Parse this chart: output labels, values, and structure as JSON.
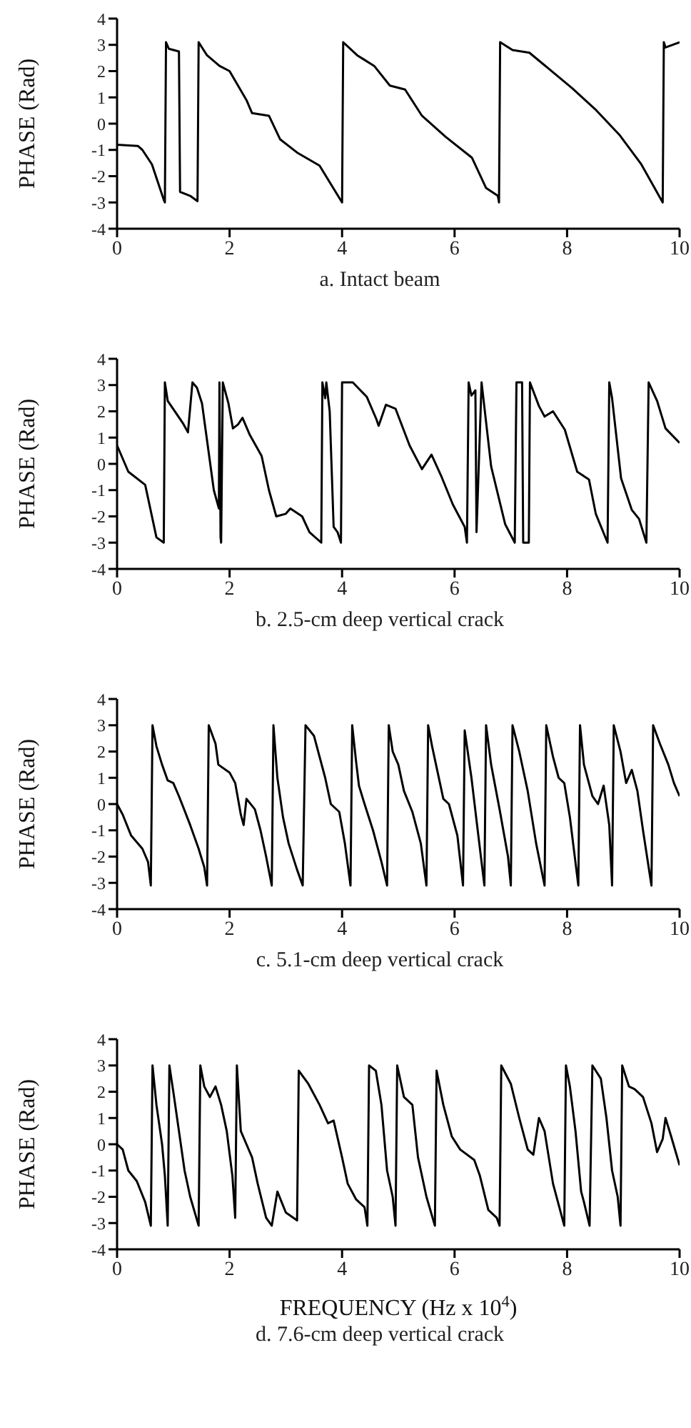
{
  "chart_data": [
    {
      "type": "line",
      "title": "a.  Intact beam",
      "ylabel": "PHASE (Rad)",
      "color": "#000000",
      "xlim": [
        0,
        10
      ],
      "xticks": [
        0,
        2,
        4,
        6,
        8,
        10
      ],
      "ylim": [
        -4,
        4
      ],
      "yticks": [
        -4,
        -3,
        -2,
        -1,
        0,
        1,
        2,
        3,
        4
      ],
      "x": [
        0,
        0.37,
        0.45,
        0.62,
        0.83,
        0.85,
        0.87,
        0.92,
        1.1,
        1.12,
        1.3,
        1.43,
        1.45,
        1.6,
        1.82,
        2.0,
        2.3,
        2.4,
        2.7,
        2.9,
        3.2,
        3.6,
        4.0,
        4.02,
        4.27,
        4.57,
        4.85,
        5.12,
        5.42,
        5.84,
        6.31,
        6.56,
        6.77,
        6.79,
        6.81,
        7.03,
        7.33,
        7.67,
        8.09,
        8.5,
        8.94,
        9.32,
        9.7,
        9.72,
        9.75,
        10
      ],
      "values": [
        -0.8,
        -0.85,
        -1.0,
        -1.55,
        -2.9,
        -3.0,
        3.1,
        2.85,
        2.75,
        -2.6,
        -2.75,
        -2.95,
        3.1,
        2.6,
        2.2,
        2.0,
        0.9,
        0.4,
        0.3,
        -0.6,
        -1.1,
        -1.6,
        -3.0,
        3.1,
        2.6,
        2.2,
        1.45,
        1.3,
        0.3,
        -0.5,
        -1.3,
        -2.45,
        -2.75,
        -3.0,
        3.1,
        2.8,
        2.7,
        2.1,
        1.35,
        0.55,
        -0.45,
        -1.55,
        -3.0,
        3.1,
        2.9,
        3.1
      ]
    },
    {
      "type": "line",
      "title": "b.  2.5-cm deep vertical crack",
      "ylabel": "PHASE (Rad)",
      "color": "#000000",
      "xlim": [
        0,
        10
      ],
      "xticks": [
        0,
        2,
        4,
        6,
        8,
        10
      ],
      "ylim": [
        -4,
        4
      ],
      "yticks": [
        -4,
        -3,
        -2,
        -1,
        0,
        1,
        2,
        3,
        4
      ],
      "x": [
        0,
        0.2,
        0.5,
        0.7,
        0.83,
        0.85,
        0.9,
        1.17,
        1.26,
        1.34,
        1.42,
        1.51,
        1.72,
        1.81,
        1.82,
        1.84,
        1.85,
        1.88,
        1.98,
        2.06,
        2.15,
        2.23,
        2.36,
        2.57,
        2.7,
        2.83,
        3.0,
        3.08,
        3.29,
        3.42,
        3.63,
        3.65,
        3.7,
        3.72,
        3.78,
        3.85,
        3.92,
        3.98,
        4.0,
        4.19,
        4.44,
        4.61,
        4.65,
        4.78,
        4.95,
        5.2,
        5.42,
        5.59,
        5.76,
        5.97,
        6.18,
        6.22,
        6.25,
        6.3,
        6.37,
        6.39,
        6.48,
        6.65,
        6.9,
        7.07,
        7.1,
        7.2,
        7.22,
        7.32,
        7.34,
        7.5,
        7.6,
        7.75,
        7.96,
        8.18,
        8.39,
        8.51,
        8.72,
        8.75,
        8.8,
        8.96,
        9.15,
        9.28,
        9.41,
        9.45,
        9.6,
        9.75,
        10
      ],
      "values": [
        0.7,
        -0.3,
        -0.8,
        -2.8,
        -3.0,
        3.1,
        2.4,
        1.55,
        1.2,
        3.1,
        2.9,
        2.3,
        -1.0,
        -1.7,
        3.1,
        -2.8,
        -3.0,
        3.1,
        2.3,
        1.35,
        1.5,
        1.75,
        1.1,
        0.3,
        -1.0,
        -2.0,
        -1.9,
        -1.7,
        -2.0,
        -2.6,
        -3.0,
        3.1,
        2.5,
        3.1,
        2.0,
        -2.4,
        -2.6,
        -3.0,
        3.1,
        3.1,
        2.55,
        1.7,
        1.45,
        2.25,
        2.1,
        0.7,
        -0.2,
        0.35,
        -0.45,
        -1.55,
        -2.4,
        -3.0,
        3.1,
        2.6,
        2.8,
        -2.6,
        3.1,
        -0.1,
        -2.3,
        -3.0,
        3.1,
        3.1,
        -3.0,
        -3.0,
        3.1,
        2.2,
        1.8,
        2.0,
        1.3,
        -0.3,
        -0.6,
        -1.9,
        -3.0,
        3.1,
        2.5,
        -0.55,
        -1.75,
        -2.1,
        -3.0,
        3.1,
        2.4,
        1.35,
        0.8
      ]
    },
    {
      "type": "line",
      "title": "c.  5.1-cm deep vertical crack",
      "ylabel": "PHASE (Rad)",
      "color": "#000000",
      "xlim": [
        0,
        10
      ],
      "xticks": [
        0,
        2,
        4,
        6,
        8,
        10
      ],
      "ylim": [
        -4,
        4
      ],
      "yticks": [
        -4,
        -3,
        -2,
        -1,
        0,
        1,
        2,
        3,
        4
      ],
      "x": [
        0,
        0.1,
        0.25,
        0.45,
        0.55,
        0.6,
        0.63,
        0.7,
        0.8,
        0.9,
        1.0,
        1.1,
        1.3,
        1.45,
        1.55,
        1.6,
        1.63,
        1.75,
        1.8,
        2.0,
        2.1,
        2.2,
        2.25,
        2.3,
        2.45,
        2.55,
        2.65,
        2.75,
        2.78,
        2.85,
        2.95,
        3.05,
        3.2,
        3.3,
        3.35,
        3.5,
        3.7,
        3.8,
        3.95,
        4.05,
        4.15,
        4.18,
        4.25,
        4.3,
        4.4,
        4.55,
        4.7,
        4.8,
        4.83,
        4.9,
        5.0,
        5.1,
        5.25,
        5.4,
        5.5,
        5.53,
        5.6,
        5.7,
        5.8,
        5.9,
        6.05,
        6.15,
        6.18,
        6.3,
        6.4,
        6.53,
        6.56,
        6.65,
        6.8,
        6.95,
        7.0,
        7.03,
        7.15,
        7.3,
        7.45,
        7.6,
        7.63,
        7.75,
        7.85,
        7.95,
        8.05,
        8.2,
        8.23,
        8.3,
        8.45,
        8.55,
        8.65,
        8.75,
        8.8,
        8.83,
        8.95,
        9.05,
        9.15,
        9.25,
        9.35,
        9.5,
        9.53,
        9.65,
        9.8,
        9.9,
        10
      ],
      "values": [
        0,
        -0.4,
        -1.2,
        -1.7,
        -2.2,
        -3.1,
        3.0,
        2.2,
        1.5,
        0.9,
        0.8,
        0.3,
        -0.8,
        -1.7,
        -2.4,
        -3.1,
        3.0,
        2.3,
        1.5,
        1.2,
        0.8,
        -0.4,
        -0.8,
        0.2,
        -0.2,
        -1.0,
        -2.0,
        -3.1,
        3.0,
        1.0,
        -0.5,
        -1.5,
        -2.5,
        -3.1,
        3.0,
        2.6,
        1.0,
        0.0,
        -0.3,
        -1.5,
        -3.1,
        3.0,
        1.6,
        0.7,
        0.0,
        -1.0,
        -2.2,
        -3.1,
        3.0,
        2.0,
        1.5,
        0.5,
        -0.3,
        -1.5,
        -3.1,
        3.0,
        2.2,
        1.2,
        0.2,
        0.0,
        -1.2,
        -3.1,
        2.8,
        1.0,
        -0.8,
        -3.1,
        3.0,
        1.5,
        -0.2,
        -2.0,
        -3.1,
        3.0,
        2.0,
        0.5,
        -1.5,
        -3.1,
        3.0,
        1.8,
        1.0,
        0.8,
        -0.5,
        -3.1,
        3.0,
        1.5,
        0.3,
        0.0,
        0.7,
        -0.8,
        -3.1,
        3.0,
        2.0,
        0.8,
        1.3,
        0.5,
        -1.0,
        -3.1,
        3.0,
        2.3,
        1.5,
        0.8,
        0.3
      ]
    },
    {
      "type": "line",
      "title": "d.  7.6-cm deep vertical crack",
      "xlabel": "FREQUENCY (Hz x 10$^{4}$)",
      "ylabel": "PHASE (Rad)",
      "color": "#000000",
      "xlim": [
        0,
        10
      ],
      "xticks": [
        0,
        2,
        4,
        6,
        8,
        10
      ],
      "ylim": [
        -4,
        4
      ],
      "yticks": [
        -4,
        -3,
        -2,
        -1,
        0,
        1,
        2,
        3,
        4
      ],
      "x": [
        0,
        0.1,
        0.2,
        0.35,
        0.5,
        0.6,
        0.63,
        0.7,
        0.8,
        0.85,
        0.9,
        0.93,
        1.0,
        1.1,
        1.2,
        1.3,
        1.45,
        1.48,
        1.55,
        1.65,
        1.75,
        1.85,
        1.95,
        2.05,
        2.1,
        2.13,
        2.2,
        2.3,
        2.4,
        2.5,
        2.65,
        2.75,
        2.85,
        3.0,
        3.2,
        3.23,
        3.4,
        3.6,
        3.75,
        3.85,
        4.0,
        4.1,
        4.25,
        4.4,
        4.45,
        4.48,
        4.6,
        4.7,
        4.8,
        4.9,
        4.95,
        4.98,
        5.1,
        5.25,
        5.35,
        5.5,
        5.65,
        5.68,
        5.8,
        5.95,
        6.1,
        6.35,
        6.45,
        6.6,
        6.75,
        6.8,
        6.83,
        7.0,
        7.15,
        7.3,
        7.4,
        7.5,
        7.6,
        7.75,
        7.95,
        7.98,
        8.05,
        8.15,
        8.25,
        8.3,
        8.4,
        8.45,
        8.6,
        8.7,
        8.8,
        8.9,
        8.95,
        8.98,
        9.1,
        9.2,
        9.35,
        9.5,
        9.6,
        9.7,
        9.75,
        9.85,
        10
      ],
      "values": [
        0,
        -0.2,
        -1.0,
        -1.4,
        -2.2,
        -3.1,
        3.0,
        1.5,
        0.0,
        -1.2,
        -3.1,
        3.0,
        2.0,
        0.5,
        -1.0,
        -2.0,
        -3.1,
        3.0,
        2.2,
        1.8,
        2.2,
        1.5,
        0.5,
        -1.2,
        -2.8,
        3.0,
        0.5,
        0.0,
        -0.5,
        -1.5,
        -2.8,
        -3.1,
        -1.8,
        -2.6,
        -2.9,
        2.8,
        2.3,
        1.5,
        0.8,
        0.9,
        -0.5,
        -1.5,
        -2.1,
        -2.4,
        -3.1,
        3.0,
        2.8,
        1.5,
        -1.0,
        -2.0,
        -3.1,
        3.0,
        1.8,
        1.5,
        -0.5,
        -2.0,
        -3.1,
        2.8,
        1.5,
        0.3,
        -0.2,
        -0.6,
        -1.2,
        -2.5,
        -2.8,
        -3.1,
        3.0,
        2.3,
        1.0,
        -0.2,
        -0.4,
        1.0,
        0.5,
        -1.5,
        -3.1,
        3.0,
        2.2,
        0.5,
        -1.8,
        -2.2,
        -3.1,
        3.0,
        2.5,
        1.0,
        -1.0,
        -2.0,
        -3.1,
        3.0,
        2.2,
        2.1,
        1.8,
        0.8,
        -0.3,
        0.2,
        1.0,
        0.3,
        -0.8
      ]
    }
  ]
}
